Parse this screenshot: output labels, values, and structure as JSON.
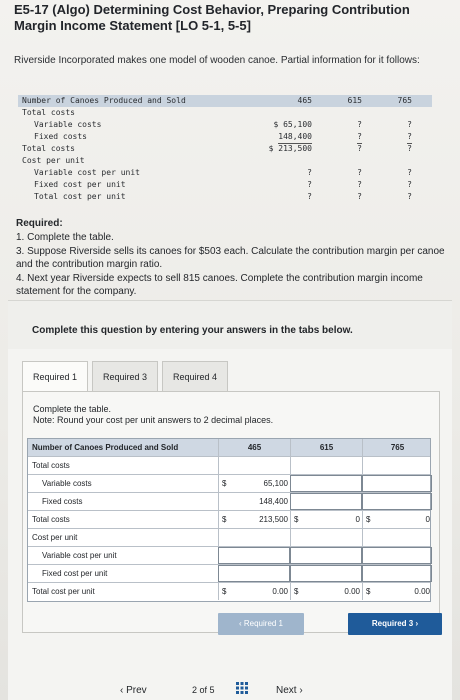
{
  "title": "E5-17 (Algo) Determining Cost Behavior, Preparing Contribution Margin Income Statement [LO 5-1, 5-5]",
  "intro": "Riverside Incorporated makes one model of wooden canoe. Partial information for it follows:",
  "problem_table": {
    "col_headers": [
      "465",
      "615",
      "765"
    ],
    "rows": [
      {
        "label": "Number of Canoes Produced and Sold",
        "values": [
          "465",
          "615",
          "765"
        ],
        "head": true
      },
      {
        "label": "Total costs",
        "values": [
          "",
          "",
          ""
        ]
      },
      {
        "label": "Variable costs",
        "values": [
          "$ 65,100",
          "?",
          "?"
        ],
        "indent": true
      },
      {
        "label": "Fixed costs",
        "values": [
          "148,400",
          "?",
          "?"
        ],
        "indent": true
      },
      {
        "label": "Total costs",
        "values": [
          "$ 213,500",
          "?",
          "?"
        ]
      },
      {
        "label": "Cost per unit",
        "values": [
          "",
          "",
          ""
        ]
      },
      {
        "label": "Variable cost per unit",
        "values": [
          "?",
          "?",
          "?"
        ],
        "indent": true
      },
      {
        "label": "Fixed cost per unit",
        "values": [
          "?",
          "?",
          "?"
        ],
        "indent": true
      },
      {
        "label": "Total cost per unit",
        "values": [
          "?",
          "?",
          "?"
        ],
        "indent": true
      }
    ]
  },
  "required": {
    "heading": "Required:",
    "items": [
      "1. Complete the table.",
      "3. Suppose Riverside sells its canoes for $503 each. Calculate the contribution margin per canoe and the contribution margin ratio.",
      "4. Next year Riverside expects to sell 815 canoes. Complete the contribution margin income statement for the company."
    ]
  },
  "card_heading": "Complete this question by entering your answers in the tabs below.",
  "tabs": [
    "Required 1",
    "Required 3",
    "Required 4"
  ],
  "instructions": {
    "line1": "Complete the table.",
    "line2": "Note: Round your cost per unit answers to 2 decimal places."
  },
  "answer_table": {
    "header_label": "Number of Canoes Produced and Sold",
    "col_headers": [
      "465",
      "615",
      "765"
    ],
    "rows": [
      {
        "label": "Total costs",
        "cells": [
          "",
          "",
          ""
        ]
      },
      {
        "label": "Variable costs",
        "cells": [
          "65,100",
          "",
          ""
        ],
        "cur": [
          "$",
          "",
          ""
        ]
      },
      {
        "label": "Fixed costs",
        "cells": [
          "148,400",
          "",
          ""
        ]
      },
      {
        "label": "Total costs",
        "cells": [
          "213,500",
          "0",
          "0"
        ],
        "cur": [
          "$",
          "$",
          "$"
        ]
      },
      {
        "label": "Cost per unit",
        "cells": [
          "",
          "",
          ""
        ]
      },
      {
        "label": "Variable cost per unit",
        "cells": [
          "",
          "",
          ""
        ]
      },
      {
        "label": "Fixed cost per unit",
        "cells": [
          "",
          "",
          ""
        ]
      },
      {
        "label": "Total cost per unit",
        "cells": [
          "0.00",
          "0.00",
          "0.00"
        ],
        "cur": [
          "$",
          "$",
          "$"
        ]
      }
    ]
  },
  "nav_buttons": {
    "prev": "‹ Required 1",
    "next": "Required 3  ›"
  },
  "footer": {
    "prev": "‹  Prev",
    "page": "2  of  5",
    "next": "Next  ›"
  },
  "colors": {
    "accent": "#1f5b9a",
    "header_bg": "#cfd8e3"
  }
}
